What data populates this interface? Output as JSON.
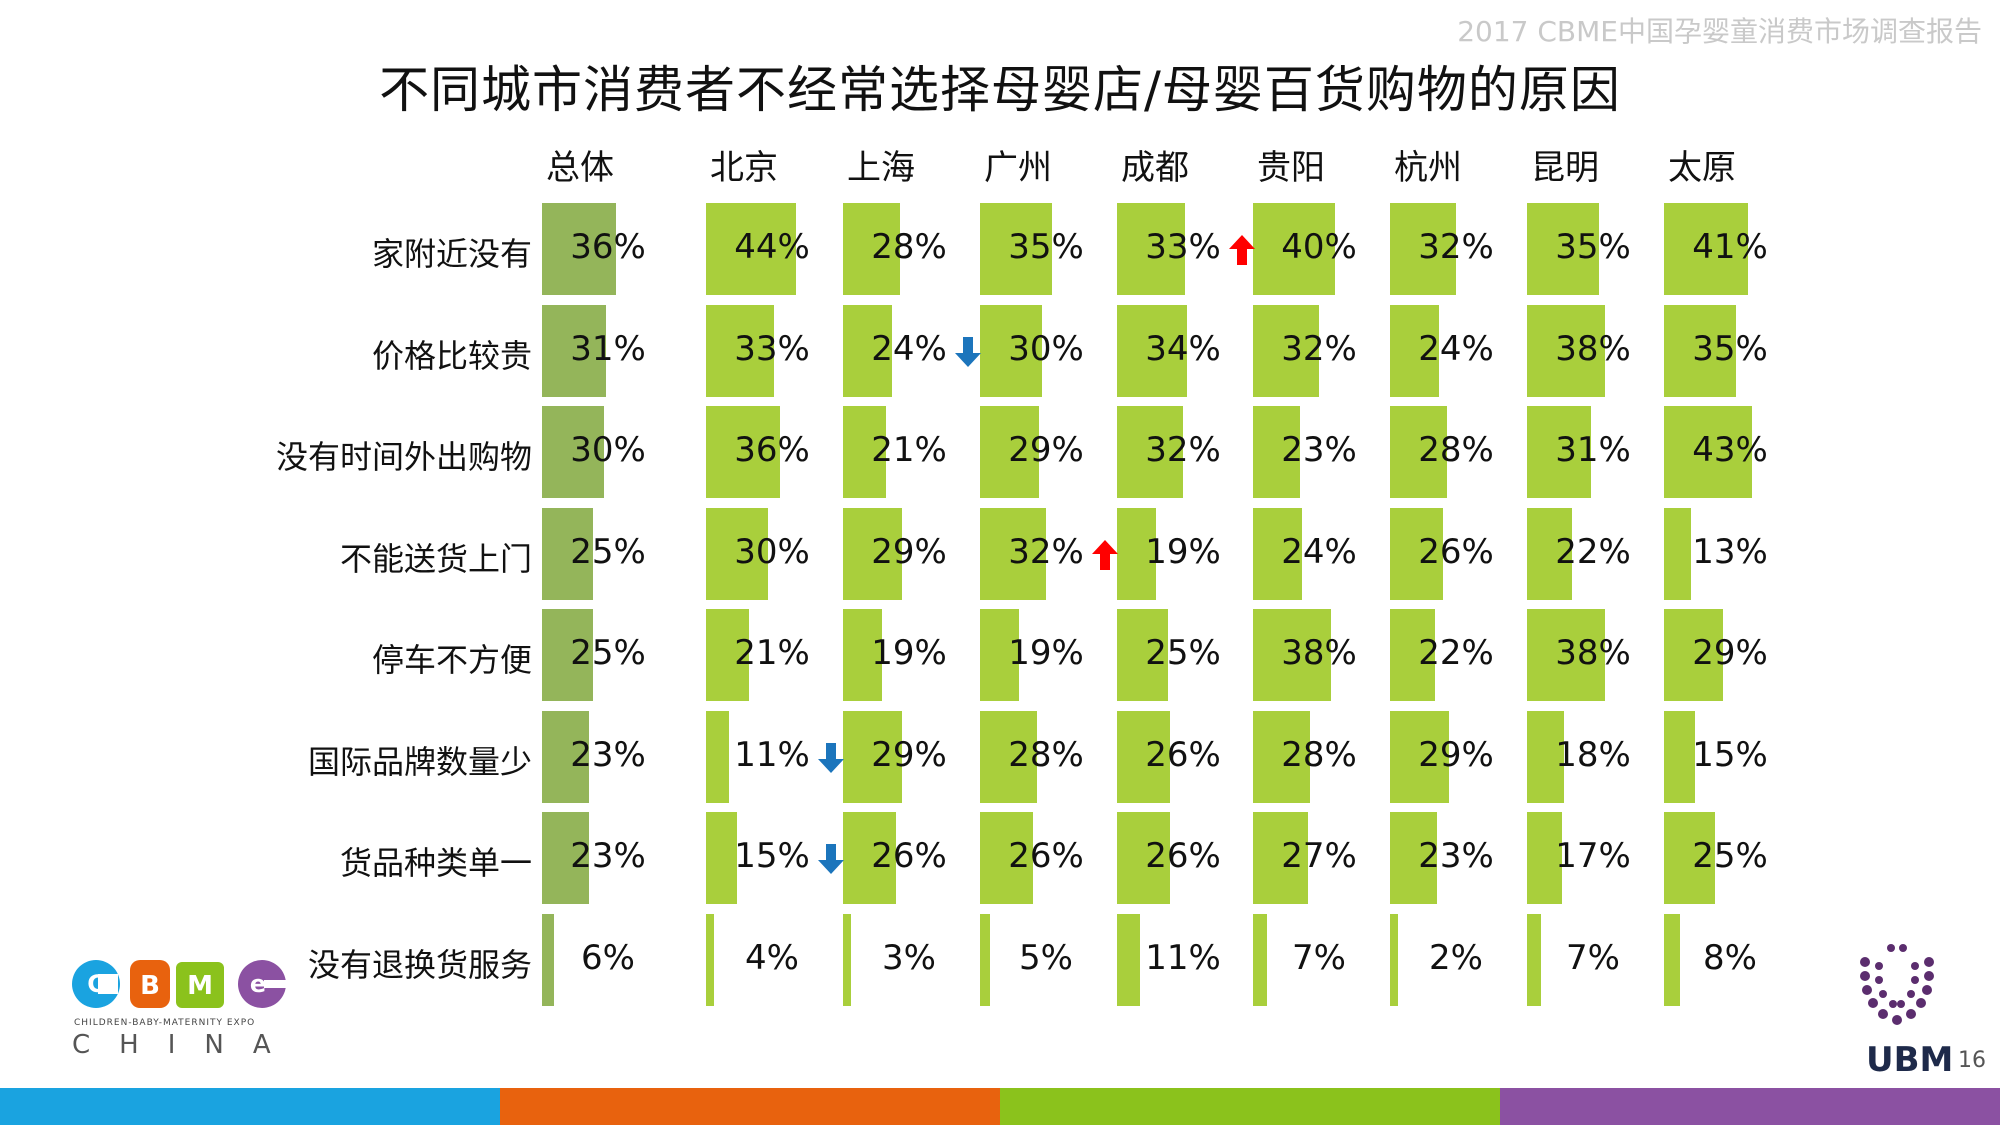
{
  "report_title": "2017 CBME中国孕婴童消费市场调查报告",
  "page_number": "16",
  "logos": {
    "cbme_letters": [
      "C",
      "B",
      "M",
      "e"
    ],
    "cbme_subtitle": "CHILDREN-BABY-MATERNITY EXPO",
    "cbme_country": "CHINA",
    "ubm": "UBM"
  },
  "colors": {
    "overall_bar": "#94b55a",
    "city_bar": "#a9cf3c",
    "up_arrow": "#ff0000",
    "down_arrow": "#1c75bc",
    "footer": [
      "#1aa3e0",
      "#e8620e",
      "#8bc21c",
      "#8b51a2"
    ]
  },
  "chart_data": {
    "type": "bar",
    "title": "不同城市消费者不经常选择母婴店/母婴百货购物的原因",
    "columns": [
      "总体",
      "北京",
      "上海",
      "广州",
      "成都",
      "贵阳",
      "杭州",
      "昆明",
      "太原"
    ],
    "categories": [
      "家附近没有",
      "价格比较贵",
      "没有时间外出购物",
      "不能送货上门",
      "停车不方便",
      "国际品牌数量少",
      "货品种类单一",
      "没有退换货服务"
    ],
    "unit": "%",
    "series": [
      {
        "name": "总体",
        "values": [
          36,
          31,
          30,
          25,
          25,
          23,
          23,
          6
        ]
      },
      {
        "name": "北京",
        "values": [
          44,
          33,
          36,
          30,
          21,
          11,
          15,
          4
        ]
      },
      {
        "name": "上海",
        "values": [
          28,
          24,
          21,
          29,
          19,
          29,
          26,
          3
        ]
      },
      {
        "name": "广州",
        "values": [
          35,
          30,
          29,
          32,
          19,
          28,
          26,
          5
        ]
      },
      {
        "name": "成都",
        "values": [
          33,
          34,
          32,
          19,
          25,
          26,
          26,
          11
        ]
      },
      {
        "name": "贵阳",
        "values": [
          40,
          32,
          23,
          24,
          38,
          28,
          27,
          7
        ]
      },
      {
        "name": "杭州",
        "values": [
          32,
          24,
          28,
          26,
          22,
          29,
          23,
          2
        ]
      },
      {
        "name": "昆明",
        "values": [
          35,
          38,
          31,
          22,
          38,
          18,
          17,
          7
        ]
      },
      {
        "name": "太原",
        "values": [
          41,
          35,
          43,
          13,
          29,
          15,
          25,
          8
        ]
      }
    ],
    "significance_markers": [
      {
        "column": "成都",
        "category": "家附近没有",
        "direction": "up"
      },
      {
        "column": "上海",
        "category": "价格比较贵",
        "direction": "down"
      },
      {
        "column": "广州",
        "category": "不能送货上门",
        "direction": "up"
      },
      {
        "column": "北京",
        "category": "国际品牌数量少",
        "direction": "down"
      },
      {
        "column": "北京",
        "category": "货品种类单一",
        "direction": "down"
      }
    ]
  }
}
